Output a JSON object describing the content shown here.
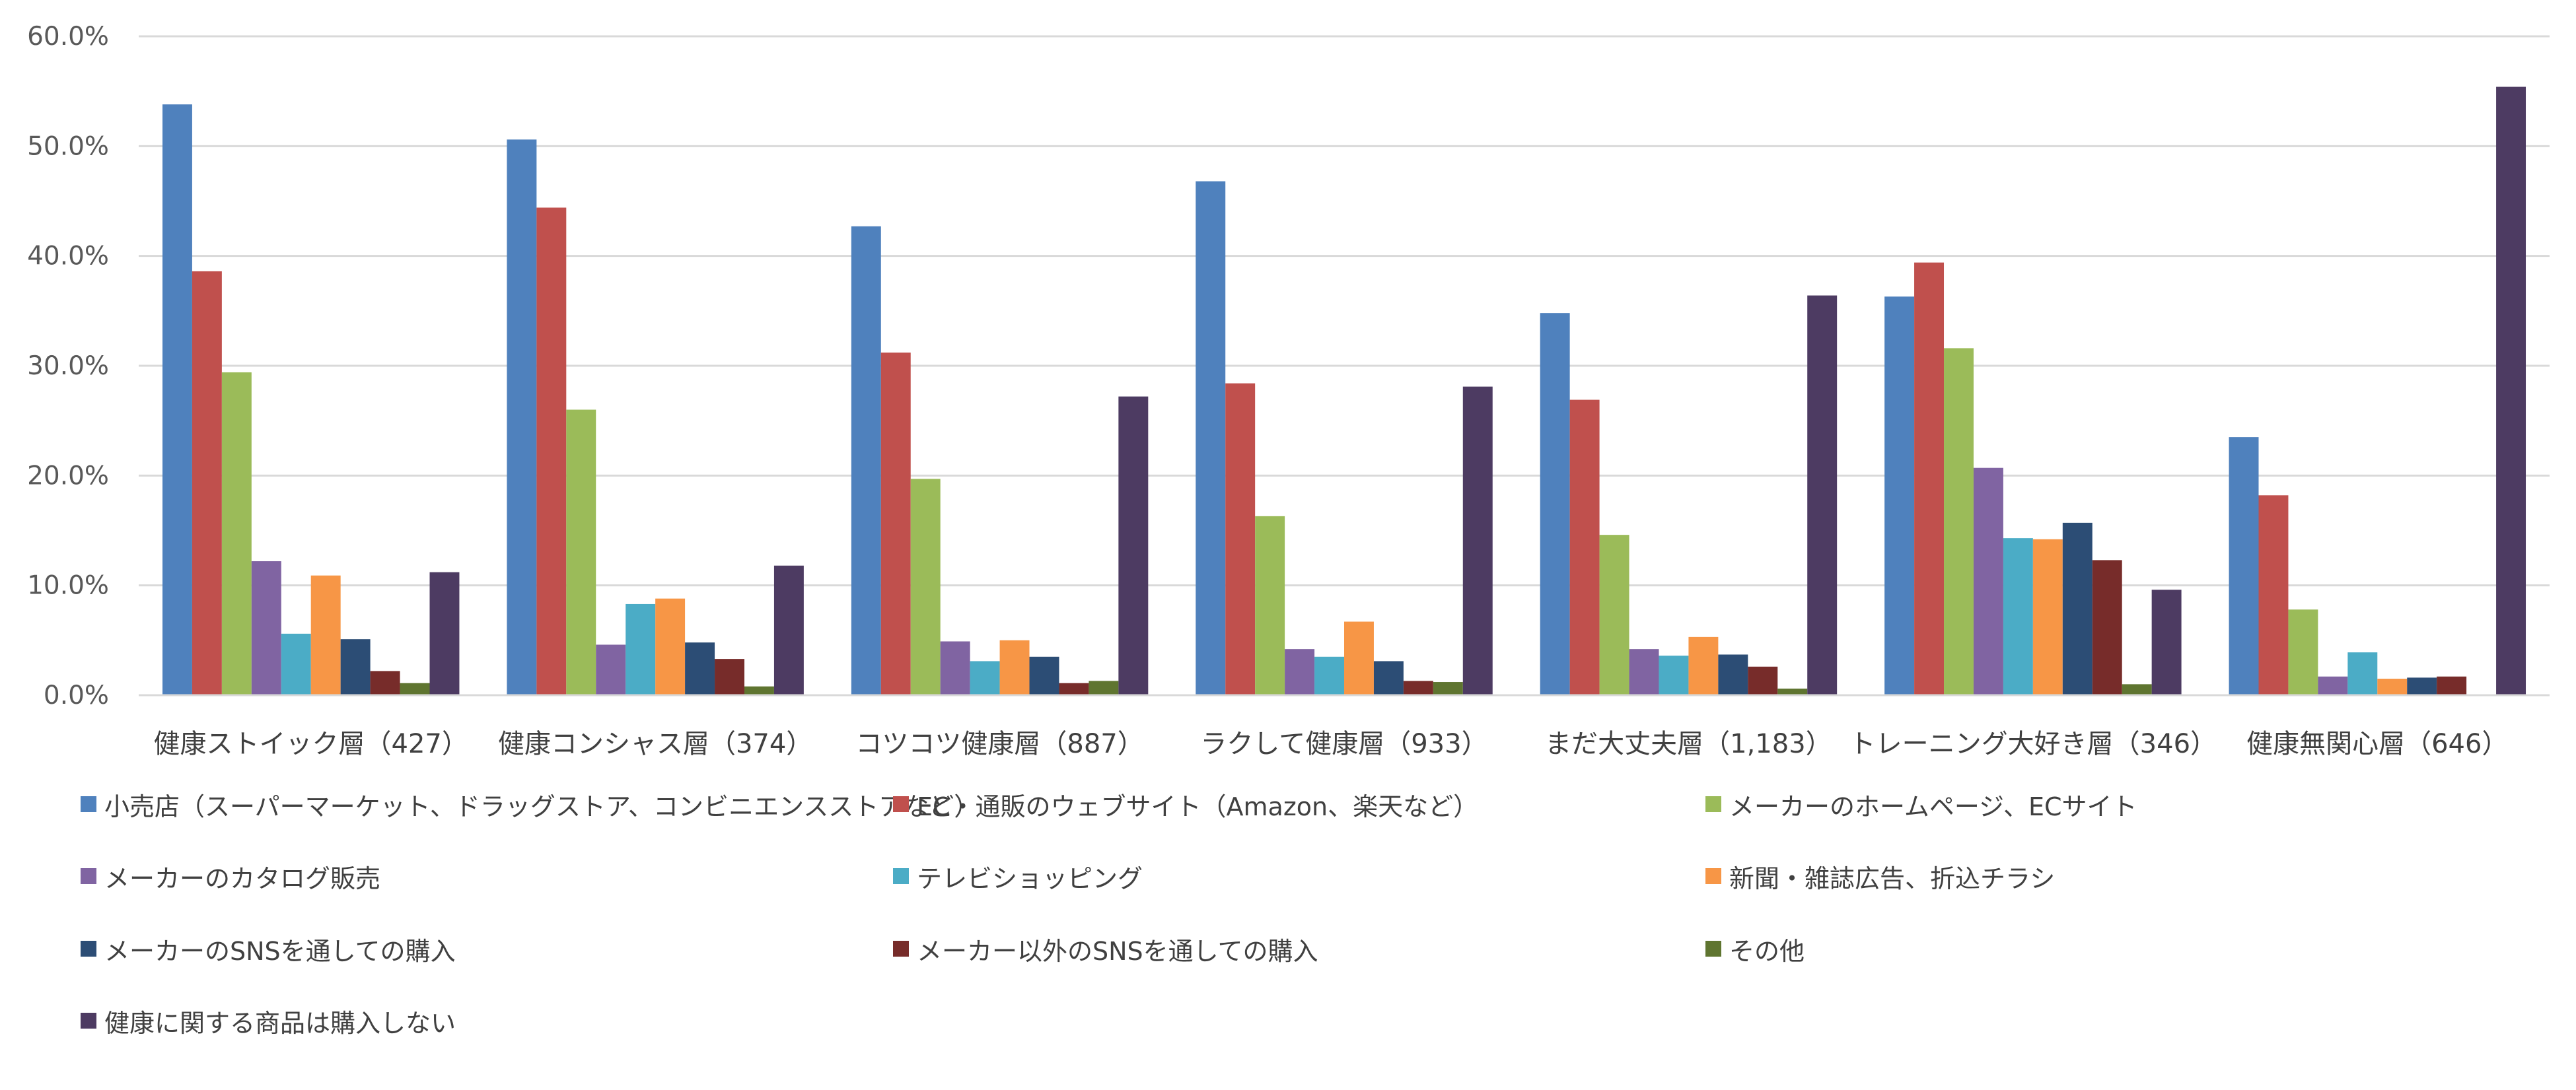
{
  "chart_data": {
    "type": "bar",
    "ylim": [
      0,
      60
    ],
    "yticks": [
      "0.0%",
      "10.0%",
      "20.0%",
      "30.0%",
      "40.0%",
      "50.0%",
      "60.0%"
    ],
    "grid": true,
    "legend_position": "bottom",
    "categories": [
      "健康ストイック層（427）",
      "健康コンシャス層（374）",
      "コツコツ健康層（887）",
      "ラクして健康層（933）",
      "まだ大丈夫層（1,183）",
      "トレーニング大好き層（346）",
      "健康無関心層（646）"
    ],
    "series": [
      {
        "name": "小売店（スーパーマーケット、ドラッグストア、コンビニエンスストアなど）",
        "color": "#4F81BD",
        "values": [
          53.8,
          50.6,
          42.7,
          46.8,
          34.8,
          36.3,
          23.5
        ]
      },
      {
        "name": "EC・通販のウェブサイト（Amazon、楽天など）",
        "color": "#C0504D",
        "values": [
          38.6,
          44.4,
          31.2,
          28.4,
          26.9,
          39.4,
          18.2
        ]
      },
      {
        "name": "メーカーのホームページ、ECサイト",
        "color": "#9BBB59",
        "values": [
          29.4,
          26.0,
          19.7,
          16.3,
          14.6,
          31.6,
          7.8
        ]
      },
      {
        "name": "メーカーのカタログ販売",
        "color": "#8064A2",
        "values": [
          12.2,
          4.6,
          4.9,
          4.2,
          4.2,
          20.7,
          1.7
        ]
      },
      {
        "name": "テレビショッピング",
        "color": "#4BACC6",
        "values": [
          5.6,
          8.3,
          3.1,
          3.5,
          3.6,
          14.3,
          3.9
        ]
      },
      {
        "name": "新聞・雑誌広告、折込チラシ",
        "color": "#F79646",
        "values": [
          10.9,
          8.8,
          5.0,
          6.7,
          5.3,
          14.2,
          1.5
        ]
      },
      {
        "name": "メーカーのSNSを通しての購入",
        "color": "#2C4D75",
        "values": [
          5.1,
          4.8,
          3.5,
          3.1,
          3.7,
          15.7,
          1.6
        ]
      },
      {
        "name": "メーカー以外のSNSを通しての購入",
        "color": "#772C2A",
        "values": [
          2.2,
          3.3,
          1.1,
          1.3,
          2.6,
          12.3,
          1.7
        ]
      },
      {
        "name": "その他",
        "color": "#5F7530",
        "values": [
          1.1,
          0.8,
          1.3,
          1.2,
          0.6,
          1.0,
          0.0
        ]
      },
      {
        "name": "健康に関する商品は購入しない",
        "color": "#4D3B62",
        "values": [
          11.2,
          11.8,
          27.2,
          28.1,
          36.4,
          9.6,
          55.4
        ]
      }
    ]
  }
}
